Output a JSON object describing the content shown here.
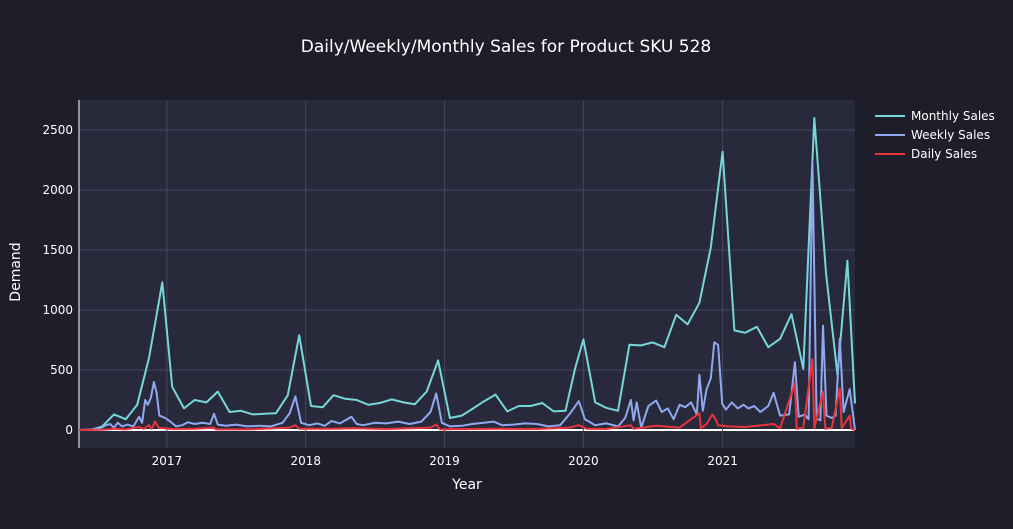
{
  "colors": {
    "page_background": "#1e1e2a",
    "plot_background": "#282a3c",
    "grid": "#44465a",
    "zero_line": "#ffffff",
    "text": "#ffffff"
  },
  "chart_data": {
    "type": "line",
    "title": "Daily/Weekly/Monthly Sales for Product SKU 528",
    "xlabel": "Year",
    "ylabel": "Demand",
    "x_axis_type": "date",
    "xlim": [
      "2016-05-15",
      "2021-12-15"
    ],
    "ylim": [
      -150,
      2750
    ],
    "x_ticks": [
      "2017",
      "2018",
      "2019",
      "2020",
      "2021"
    ],
    "y_ticks": [
      0,
      500,
      1000,
      1500,
      2000,
      2500
    ],
    "grid": true,
    "legend_position": "top-right",
    "series": [
      {
        "name": "Monthly Sales",
        "color": "#76d7d9",
        "points": [
          [
            "2016-05-15",
            0
          ],
          [
            "2016-06-15",
            0
          ],
          [
            "2016-07-15",
            30
          ],
          [
            "2016-08-15",
            130
          ],
          [
            "2016-09-15",
            90
          ],
          [
            "2016-10-15",
            210
          ],
          [
            "2016-11-15",
            600
          ],
          [
            "2016-12-20",
            1230
          ],
          [
            "2017-01-15",
            360
          ],
          [
            "2017-02-15",
            180
          ],
          [
            "2017-03-15",
            250
          ],
          [
            "2017-04-15",
            230
          ],
          [
            "2017-05-15",
            320
          ],
          [
            "2017-06-15",
            150
          ],
          [
            "2017-07-15",
            160
          ],
          [
            "2017-08-15",
            130
          ],
          [
            "2017-09-15",
            135
          ],
          [
            "2017-10-15",
            140
          ],
          [
            "2017-11-15",
            290
          ],
          [
            "2017-12-15",
            790
          ],
          [
            "2018-01-15",
            200
          ],
          [
            "2018-02-15",
            190
          ],
          [
            "2018-03-15",
            290
          ],
          [
            "2018-04-15",
            260
          ],
          [
            "2018-05-15",
            250
          ],
          [
            "2018-06-15",
            210
          ],
          [
            "2018-07-15",
            225
          ],
          [
            "2018-08-15",
            255
          ],
          [
            "2018-09-15",
            230
          ],
          [
            "2018-10-15",
            215
          ],
          [
            "2018-11-15",
            320
          ],
          [
            "2018-12-15",
            580
          ],
          [
            "2019-01-15",
            100
          ],
          [
            "2019-02-15",
            120
          ],
          [
            "2019-03-15",
            175
          ],
          [
            "2019-04-15",
            240
          ],
          [
            "2019-05-15",
            295
          ],
          [
            "2019-06-15",
            155
          ],
          [
            "2019-07-15",
            200
          ],
          [
            "2019-08-15",
            200
          ],
          [
            "2019-09-15",
            225
          ],
          [
            "2019-10-15",
            155
          ],
          [
            "2019-11-15",
            160
          ],
          [
            "2019-12-10",
            510
          ],
          [
            "2020-01-01",
            755
          ],
          [
            "2020-02-01",
            230
          ],
          [
            "2020-03-01",
            185
          ],
          [
            "2020-04-01",
            160
          ],
          [
            "2020-05-01",
            710
          ],
          [
            "2020-06-01",
            705
          ],
          [
            "2020-07-01",
            730
          ],
          [
            "2020-08-01",
            690
          ],
          [
            "2020-09-01",
            960
          ],
          [
            "2020-10-01",
            880
          ],
          [
            "2020-11-01",
            1060
          ],
          [
            "2020-12-01",
            1520
          ],
          [
            "2021-01-01",
            2320
          ],
          [
            "2021-02-01",
            830
          ],
          [
            "2021-03-01",
            810
          ],
          [
            "2021-04-01",
            860
          ],
          [
            "2021-05-01",
            690
          ],
          [
            "2021-06-01",
            760
          ],
          [
            "2021-07-01",
            965
          ],
          [
            "2021-08-01",
            510
          ],
          [
            "2021-08-30",
            2600
          ],
          [
            "2021-09-30",
            1300
          ],
          [
            "2021-10-30",
            460
          ],
          [
            "2021-11-25",
            1410
          ],
          [
            "2021-12-15",
            220
          ]
        ]
      },
      {
        "name": "Weekly Sales",
        "color": "#8fa8f0",
        "points": [
          [
            "2016-05-15",
            0
          ],
          [
            "2016-06-20",
            5
          ],
          [
            "2016-07-10",
            15
          ],
          [
            "2016-07-25",
            40
          ],
          [
            "2016-08-05",
            50
          ],
          [
            "2016-08-15",
            20
          ],
          [
            "2016-08-25",
            60
          ],
          [
            "2016-09-05",
            30
          ],
          [
            "2016-09-20",
            45
          ],
          [
            "2016-10-05",
            30
          ],
          [
            "2016-10-20",
            110
          ],
          [
            "2016-10-28",
            60
          ],
          [
            "2016-11-05",
            250
          ],
          [
            "2016-11-12",
            210
          ],
          [
            "2016-11-20",
            270
          ],
          [
            "2016-11-28",
            400
          ],
          [
            "2016-12-05",
            310
          ],
          [
            "2016-12-12",
            120
          ],
          [
            "2016-12-20",
            110
          ],
          [
            "2016-12-28",
            100
          ],
          [
            "2017-01-10",
            70
          ],
          [
            "2017-01-25",
            30
          ],
          [
            "2017-02-10",
            40
          ],
          [
            "2017-02-25",
            65
          ],
          [
            "2017-03-15",
            50
          ],
          [
            "2017-04-05",
            60
          ],
          [
            "2017-04-25",
            50
          ],
          [
            "2017-05-05",
            135
          ],
          [
            "2017-05-15",
            45
          ],
          [
            "2017-06-05",
            35
          ],
          [
            "2017-07-01",
            45
          ],
          [
            "2017-08-01",
            30
          ],
          [
            "2017-09-01",
            35
          ],
          [
            "2017-10-01",
            30
          ],
          [
            "2017-11-01",
            60
          ],
          [
            "2017-11-20",
            140
          ],
          [
            "2017-12-05",
            280
          ],
          [
            "2017-12-20",
            60
          ],
          [
            "2018-01-10",
            40
          ],
          [
            "2018-02-01",
            55
          ],
          [
            "2018-02-20",
            35
          ],
          [
            "2018-03-10",
            75
          ],
          [
            "2018-04-01",
            55
          ],
          [
            "2018-04-20",
            90
          ],
          [
            "2018-05-01",
            110
          ],
          [
            "2018-05-15",
            50
          ],
          [
            "2018-06-01",
            40
          ],
          [
            "2018-07-01",
            60
          ],
          [
            "2018-08-01",
            55
          ],
          [
            "2018-09-01",
            70
          ],
          [
            "2018-10-01",
            50
          ],
          [
            "2018-11-01",
            70
          ],
          [
            "2018-11-25",
            150
          ],
          [
            "2018-12-10",
            305
          ],
          [
            "2018-12-25",
            60
          ],
          [
            "2019-01-15",
            30
          ],
          [
            "2019-02-15",
            35
          ],
          [
            "2019-03-15",
            50
          ],
          [
            "2019-04-15",
            60
          ],
          [
            "2019-05-10",
            70
          ],
          [
            "2019-06-01",
            40
          ],
          [
            "2019-07-01",
            45
          ],
          [
            "2019-08-01",
            55
          ],
          [
            "2019-09-01",
            50
          ],
          [
            "2019-10-01",
            30
          ],
          [
            "2019-11-01",
            40
          ],
          [
            "2019-11-25",
            130
          ],
          [
            "2019-12-20",
            240
          ],
          [
            "2020-01-05",
            90
          ],
          [
            "2020-02-01",
            40
          ],
          [
            "2020-03-01",
            55
          ],
          [
            "2020-04-01",
            30
          ],
          [
            "2020-04-20",
            100
          ],
          [
            "2020-05-05",
            250
          ],
          [
            "2020-05-12",
            80
          ],
          [
            "2020-05-20",
            230
          ],
          [
            "2020-06-01",
            20
          ],
          [
            "2020-06-20",
            200
          ],
          [
            "2020-07-10",
            245
          ],
          [
            "2020-07-25",
            150
          ],
          [
            "2020-08-10",
            180
          ],
          [
            "2020-08-25",
            90
          ],
          [
            "2020-09-10",
            210
          ],
          [
            "2020-09-25",
            190
          ],
          [
            "2020-10-10",
            230
          ],
          [
            "2020-10-25",
            130
          ],
          [
            "2020-11-01",
            460
          ],
          [
            "2020-11-10",
            160
          ],
          [
            "2020-11-20",
            340
          ],
          [
            "2020-12-01",
            430
          ],
          [
            "2020-12-10",
            730
          ],
          [
            "2020-12-20",
            710
          ],
          [
            "2020-12-31",
            220
          ],
          [
            "2021-01-10",
            170
          ],
          [
            "2021-01-25",
            230
          ],
          [
            "2021-02-10",
            180
          ],
          [
            "2021-02-25",
            210
          ],
          [
            "2021-03-10",
            180
          ],
          [
            "2021-03-25",
            200
          ],
          [
            "2021-04-10",
            150
          ],
          [
            "2021-05-01",
            200
          ],
          [
            "2021-05-15",
            310
          ],
          [
            "2021-06-01",
            120
          ],
          [
            "2021-06-25",
            130
          ],
          [
            "2021-07-10",
            565
          ],
          [
            "2021-07-20",
            110
          ],
          [
            "2021-08-05",
            130
          ],
          [
            "2021-08-15",
            90
          ],
          [
            "2021-08-25",
            2240
          ],
          [
            "2021-09-05",
            95
          ],
          [
            "2021-09-15",
            80
          ],
          [
            "2021-09-22",
            870
          ],
          [
            "2021-10-01",
            120
          ],
          [
            "2021-10-15",
            100
          ],
          [
            "2021-10-25",
            120
          ],
          [
            "2021-11-05",
            760
          ],
          [
            "2021-11-15",
            150
          ],
          [
            "2021-12-01",
            340
          ],
          [
            "2021-12-15",
            0
          ]
        ]
      },
      {
        "name": "Daily Sales",
        "color": "#e8333b",
        "points": [
          [
            "2016-05-15",
            0
          ],
          [
            "2016-07-15",
            2
          ],
          [
            "2016-08-15",
            10
          ],
          [
            "2016-09-15",
            5
          ],
          [
            "2016-10-20",
            25
          ],
          [
            "2016-11-01",
            10
          ],
          [
            "2016-11-15",
            40
          ],
          [
            "2016-11-22",
            10
          ],
          [
            "2016-12-01",
            70
          ],
          [
            "2016-12-10",
            20
          ],
          [
            "2017-01-15",
            8
          ],
          [
            "2017-03-15",
            10
          ],
          [
            "2017-05-05",
            20
          ],
          [
            "2017-05-10",
            5
          ],
          [
            "2017-08-01",
            5
          ],
          [
            "2017-11-20",
            20
          ],
          [
            "2017-12-05",
            40
          ],
          [
            "2017-12-15",
            10
          ],
          [
            "2018-03-15",
            10
          ],
          [
            "2018-05-01",
            15
          ],
          [
            "2018-08-01",
            8
          ],
          [
            "2018-11-25",
            20
          ],
          [
            "2018-12-10",
            45
          ],
          [
            "2018-12-20",
            5
          ],
          [
            "2019-03-01",
            8
          ],
          [
            "2019-06-01",
            10
          ],
          [
            "2019-09-01",
            8
          ],
          [
            "2019-11-25",
            20
          ],
          [
            "2019-12-20",
            40
          ],
          [
            "2020-01-10",
            10
          ],
          [
            "2020-03-01",
            8
          ],
          [
            "2020-05-05",
            40
          ],
          [
            "2020-05-12",
            10
          ],
          [
            "2020-07-10",
            35
          ],
          [
            "2020-09-10",
            20
          ],
          [
            "2020-11-01",
            140
          ],
          [
            "2020-11-05",
            15
          ],
          [
            "2020-11-20",
            50
          ],
          [
            "2020-12-05",
            130
          ],
          [
            "2020-12-12",
            100
          ],
          [
            "2020-12-20",
            40
          ],
          [
            "2021-01-15",
            30
          ],
          [
            "2021-03-01",
            25
          ],
          [
            "2021-05-15",
            50
          ],
          [
            "2021-06-01",
            15
          ],
          [
            "2021-07-10",
            390
          ],
          [
            "2021-07-15",
            10
          ],
          [
            "2021-08-01",
            20
          ],
          [
            "2021-08-25",
            590
          ],
          [
            "2021-08-30",
            15
          ],
          [
            "2021-09-22",
            320
          ],
          [
            "2021-09-28",
            10
          ],
          [
            "2021-10-15",
            20
          ],
          [
            "2021-11-05",
            345
          ],
          [
            "2021-11-10",
            15
          ],
          [
            "2021-12-01",
            120
          ],
          [
            "2021-12-05",
            10
          ],
          [
            "2021-12-15",
            0
          ]
        ]
      }
    ]
  }
}
